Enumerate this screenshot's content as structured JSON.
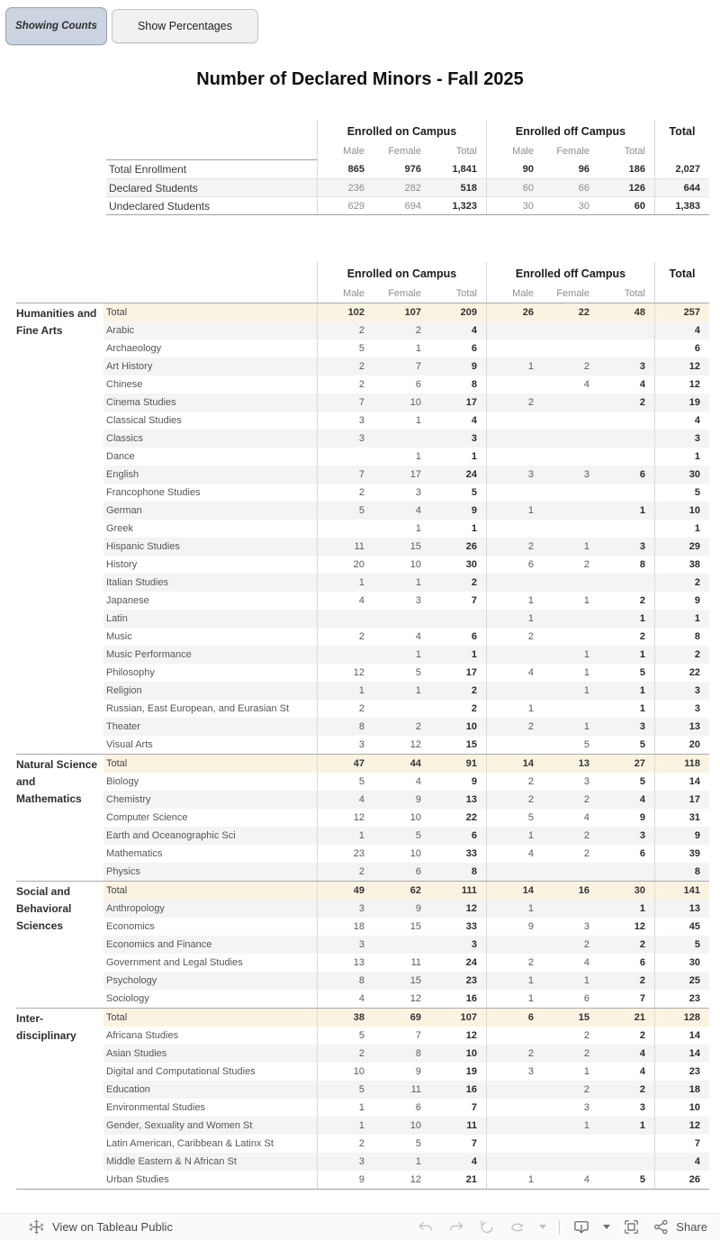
{
  "toolbar": {
    "showing_counts_label": "Showing Counts",
    "show_percentages_label": "Show Percentages"
  },
  "title": "Number of Declared Minors - Fall 2025",
  "colors": {
    "total_row_bg": "#fbf3e2",
    "stripe_bg": "#f4f4f4",
    "active_button_bg": "#ccd3e1"
  },
  "summary_table": {
    "column_groups": [
      "Enrolled on Campus",
      "Enrolled off Campus"
    ],
    "total_header": "Total",
    "sub_headers": [
      "Male",
      "Female",
      "Total"
    ],
    "rows": [
      {
        "label": "Total Enrollment",
        "values": [
          "865",
          "976",
          "1,841",
          "90",
          "96",
          "186",
          "2,027"
        ]
      },
      {
        "label": "Declared Students",
        "values": [
          "236",
          "282",
          "518",
          "60",
          "66",
          "126",
          "644"
        ]
      },
      {
        "label": "Undeclared Students",
        "values": [
          "629",
          "694",
          "1,323",
          "30",
          "30",
          "60",
          "1,383"
        ]
      }
    ]
  },
  "minors_table": {
    "column_groups": [
      "Enrolled on Campus",
      "Enrolled off Campus"
    ],
    "total_header": "Total",
    "sub_headers": [
      "Male",
      "Female",
      "Total"
    ],
    "groups": [
      {
        "name": "Humanities and Fine Arts",
        "rows": [
          {
            "label": "Total",
            "is_total": true,
            "values": [
              "102",
              "107",
              "209",
              "26",
              "22",
              "48",
              "257"
            ]
          },
          {
            "label": "Arabic",
            "values": [
              "2",
              "2",
              "4",
              "",
              "",
              "",
              "4"
            ]
          },
          {
            "label": "Archaeology",
            "values": [
              "5",
              "1",
              "6",
              "",
              "",
              "",
              "6"
            ]
          },
          {
            "label": "Art History",
            "values": [
              "2",
              "7",
              "9",
              "1",
              "2",
              "3",
              "12"
            ]
          },
          {
            "label": "Chinese",
            "values": [
              "2",
              "6",
              "8",
              "",
              "4",
              "4",
              "12"
            ]
          },
          {
            "label": "Cinema Studies",
            "values": [
              "7",
              "10",
              "17",
              "2",
              "",
              "2",
              "19"
            ]
          },
          {
            "label": "Classical Studies",
            "values": [
              "3",
              "1",
              "4",
              "",
              "",
              "",
              "4"
            ]
          },
          {
            "label": "Classics",
            "values": [
              "3",
              "",
              "3",
              "",
              "",
              "",
              "3"
            ]
          },
          {
            "label": "Dance",
            "values": [
              "",
              "1",
              "1",
              "",
              "",
              "",
              "1"
            ]
          },
          {
            "label": "English",
            "values": [
              "7",
              "17",
              "24",
              "3",
              "3",
              "6",
              "30"
            ]
          },
          {
            "label": "Francophone Studies",
            "values": [
              "2",
              "3",
              "5",
              "",
              "",
              "",
              "5"
            ]
          },
          {
            "label": "German",
            "values": [
              "5",
              "4",
              "9",
              "1",
              "",
              "1",
              "10"
            ]
          },
          {
            "label": "Greek",
            "values": [
              "",
              "1",
              "1",
              "",
              "",
              "",
              "1"
            ]
          },
          {
            "label": "Hispanic Studies",
            "values": [
              "11",
              "15",
              "26",
              "2",
              "1",
              "3",
              "29"
            ]
          },
          {
            "label": "History",
            "values": [
              "20",
              "10",
              "30",
              "6",
              "2",
              "8",
              "38"
            ]
          },
          {
            "label": "Italian Studies",
            "values": [
              "1",
              "1",
              "2",
              "",
              "",
              "",
              "2"
            ]
          },
          {
            "label": "Japanese",
            "values": [
              "4",
              "3",
              "7",
              "1",
              "1",
              "2",
              "9"
            ]
          },
          {
            "label": "Latin",
            "values": [
              "",
              "",
              "",
              "1",
              "",
              "1",
              "1"
            ]
          },
          {
            "label": "Music",
            "values": [
              "2",
              "4",
              "6",
              "2",
              "",
              "2",
              "8"
            ]
          },
          {
            "label": "Music Performance",
            "values": [
              "",
              "1",
              "1",
              "",
              "1",
              "1",
              "2"
            ]
          },
          {
            "label": "Philosophy",
            "values": [
              "12",
              "5",
              "17",
              "4",
              "1",
              "5",
              "22"
            ]
          },
          {
            "label": "Religion",
            "values": [
              "1",
              "1",
              "2",
              "",
              "1",
              "1",
              "3"
            ]
          },
          {
            "label": "Russian, East European, and Eurasian St",
            "values": [
              "2",
              "",
              "2",
              "1",
              "",
              "1",
              "3"
            ]
          },
          {
            "label": "Theater",
            "values": [
              "8",
              "2",
              "10",
              "2",
              "1",
              "3",
              "13"
            ]
          },
          {
            "label": "Visual Arts",
            "values": [
              "3",
              "12",
              "15",
              "",
              "5",
              "5",
              "20"
            ]
          }
        ]
      },
      {
        "name": "Natural Science and Mathematics",
        "rows": [
          {
            "label": "Total",
            "is_total": true,
            "values": [
              "47",
              "44",
              "91",
              "14",
              "13",
              "27",
              "118"
            ]
          },
          {
            "label": "Biology",
            "values": [
              "5",
              "4",
              "9",
              "2",
              "3",
              "5",
              "14"
            ]
          },
          {
            "label": "Chemistry",
            "values": [
              "4",
              "9",
              "13",
              "2",
              "2",
              "4",
              "17"
            ]
          },
          {
            "label": "Computer Science",
            "values": [
              "12",
              "10",
              "22",
              "5",
              "4",
              "9",
              "31"
            ]
          },
          {
            "label": "Earth and Oceanographic Sci",
            "values": [
              "1",
              "5",
              "6",
              "1",
              "2",
              "3",
              "9"
            ]
          },
          {
            "label": "Mathematics",
            "values": [
              "23",
              "10",
              "33",
              "4",
              "2",
              "6",
              "39"
            ]
          },
          {
            "label": "Physics",
            "values": [
              "2",
              "6",
              "8",
              "",
              "",
              "",
              "8"
            ]
          }
        ]
      },
      {
        "name": "Social and Behavioral Sciences",
        "rows": [
          {
            "label": "Total",
            "is_total": true,
            "values": [
              "49",
              "62",
              "111",
              "14",
              "16",
              "30",
              "141"
            ]
          },
          {
            "label": "Anthropology",
            "values": [
              "3",
              "9",
              "12",
              "1",
              "",
              "1",
              "13"
            ]
          },
          {
            "label": "Economics",
            "values": [
              "18",
              "15",
              "33",
              "9",
              "3",
              "12",
              "45"
            ]
          },
          {
            "label": "Economics and Finance",
            "values": [
              "3",
              "",
              "3",
              "",
              "2",
              "2",
              "5"
            ]
          },
          {
            "label": "Government and Legal Studies",
            "values": [
              "13",
              "11",
              "24",
              "2",
              "4",
              "6",
              "30"
            ]
          },
          {
            "label": "Psychology",
            "values": [
              "8",
              "15",
              "23",
              "1",
              "1",
              "2",
              "25"
            ]
          },
          {
            "label": "Sociology",
            "values": [
              "4",
              "12",
              "16",
              "1",
              "6",
              "7",
              "23"
            ]
          }
        ]
      },
      {
        "name": "Inter-disciplinary",
        "rows": [
          {
            "label": "Total",
            "is_total": true,
            "values": [
              "38",
              "69",
              "107",
              "6",
              "15",
              "21",
              "128"
            ]
          },
          {
            "label": "Africana Studies",
            "values": [
              "5",
              "7",
              "12",
              "",
              "2",
              "2",
              "14"
            ]
          },
          {
            "label": "Asian Studies",
            "values": [
              "2",
              "8",
              "10",
              "2",
              "2",
              "4",
              "14"
            ]
          },
          {
            "label": "Digital and Computational Studies",
            "values": [
              "10",
              "9",
              "19",
              "3",
              "1",
              "4",
              "23"
            ]
          },
          {
            "label": "Education",
            "values": [
              "5",
              "11",
              "16",
              "",
              "2",
              "2",
              "18"
            ]
          },
          {
            "label": "Environmental Studies",
            "values": [
              "1",
              "6",
              "7",
              "",
              "3",
              "3",
              "10"
            ]
          },
          {
            "label": "Gender, Sexuality and Women St",
            "values": [
              "1",
              "10",
              "11",
              "",
              "1",
              "1",
              "12"
            ]
          },
          {
            "label": "Latin American, Caribbean & Latinx St",
            "values": [
              "2",
              "5",
              "7",
              "",
              "",
              "",
              "7"
            ]
          },
          {
            "label": "Middle Eastern & N African St",
            "values": [
              "3",
              "1",
              "4",
              "",
              "",
              "",
              "4"
            ]
          },
          {
            "label": "Urban Studies",
            "values": [
              "9",
              "12",
              "21",
              "1",
              "4",
              "5",
              "26"
            ]
          }
        ]
      }
    ]
  },
  "footer": {
    "view_label": "View on Tableau Public",
    "share_label": "Share",
    "icons": [
      "tableau-logo-icon",
      "undo-icon",
      "redo-icon",
      "revert-icon",
      "refresh-icon",
      "download-icon",
      "fullscreen-icon",
      "share-icon"
    ]
  }
}
